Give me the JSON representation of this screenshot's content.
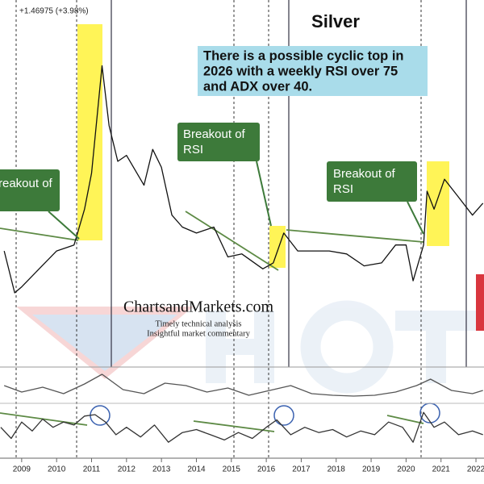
{
  "header": "+1.46975 (+3.98%)",
  "watermark": {
    "brand": "ChartsandMarkets.com",
    "line1": "Timely technical analysis",
    "line2": "Insightful market commentary"
  },
  "chart_data": [
    {
      "type": "line",
      "title": "Silver",
      "color": "#111111",
      "annotations": {
        "info": [
          "There is a possible cyclic top in",
          "2026 with a weekly RSI over 75",
          "and ADX over 40."
        ],
        "breakouts": [
          [
            "reakout of",
            "RSI"
          ],
          [
            "Breakout of",
            "RSI"
          ],
          [
            "Breakout of",
            "RSI"
          ]
        ]
      },
      "x": [
        2008.5,
        2008.8,
        2009.0,
        2009.5,
        2010.0,
        2010.5,
        2010.8,
        2011.0,
        2011.3,
        2011.5,
        2011.75,
        2012.0,
        2012.5,
        2012.75,
        2013.0,
        2013.3,
        2013.6,
        2014.0,
        2014.5,
        2014.9,
        2015.3,
        2015.9,
        2016.2,
        2016.5,
        2016.9,
        2017.4,
        2017.8,
        2018.3,
        2018.8,
        2019.3,
        2019.7,
        2020.0,
        2020.2,
        2020.5,
        2020.6,
        2020.8,
        2021.1,
        2021.5,
        2021.9,
        2022.2
      ],
      "values": [
        17,
        10,
        11,
        14,
        17,
        18,
        24,
        30,
        48,
        38,
        32,
        33,
        28,
        34,
        31,
        23,
        21,
        20,
        21,
        16,
        16.5,
        14,
        15,
        20,
        17,
        17,
        17,
        16.5,
        14.5,
        15,
        18,
        18,
        12,
        18,
        27,
        24,
        29,
        26,
        23,
        25
      ],
      "xlim": [
        2008.38,
        2022.23
      ],
      "xticks": [
        2009,
        2010,
        2011,
        2012,
        2013,
        2014,
        2015,
        2016,
        2017,
        2018,
        2019,
        2020,
        2021,
        2022
      ],
      "ylim": [
        5,
        59
      ]
    },
    {
      "type": "line",
      "color": "#555555",
      "x": [
        2008.5,
        2009.0,
        2009.6,
        2010.2,
        2010.8,
        2011.3,
        2011.9,
        2012.5,
        2013.1,
        2013.7,
        2014.3,
        2014.9,
        2015.5,
        2016.1,
        2016.7,
        2017.3,
        2017.9,
        2018.5,
        2019.1,
        2019.7,
        2020.3,
        2020.7,
        2021.3,
        2021.9,
        2022.2
      ],
      "values": [
        30,
        22,
        28,
        20,
        32,
        44,
        25,
        20,
        33,
        30,
        22,
        27,
        18,
        24,
        30,
        20,
        18,
        17,
        18,
        22,
        30,
        38,
        24,
        20,
        24
      ],
      "ylim": [
        10,
        50
      ]
    },
    {
      "type": "line",
      "color": "#333333",
      "x": [
        2008.4,
        2008.7,
        2009.0,
        2009.3,
        2009.6,
        2009.9,
        2010.2,
        2010.5,
        2010.8,
        2011.1,
        2011.4,
        2011.7,
        2012.0,
        2012.4,
        2012.8,
        2013.2,
        2013.6,
        2014.0,
        2014.4,
        2014.8,
        2015.2,
        2015.6,
        2016.0,
        2016.3,
        2016.7,
        2017.1,
        2017.5,
        2017.9,
        2018.3,
        2018.7,
        2019.1,
        2019.5,
        2019.9,
        2020.2,
        2020.5,
        2020.8,
        2021.1,
        2021.5,
        2021.9,
        2022.2
      ],
      "values": [
        55,
        40,
        62,
        50,
        66,
        55,
        62,
        58,
        70,
        72,
        62,
        45,
        55,
        42,
        58,
        35,
        48,
        52,
        45,
        38,
        48,
        40,
        55,
        65,
        45,
        55,
        48,
        52,
        42,
        50,
        45,
        62,
        55,
        35,
        75,
        55,
        62,
        45,
        50,
        45
      ],
      "ylim": [
        20,
        85
      ]
    }
  ]
}
